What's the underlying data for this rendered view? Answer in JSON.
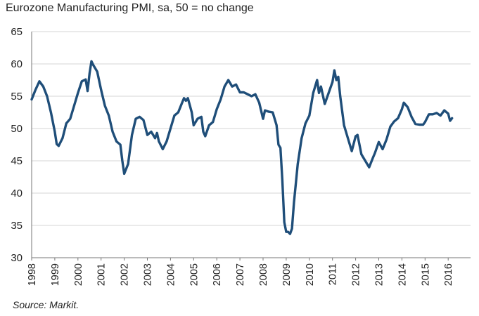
{
  "chart_data": {
    "type": "line",
    "title": "Eurozone Manufacturing PMI, sa, 50 = no change",
    "source": "Source: Markit.",
    "xlabel": "",
    "ylabel": "",
    "ylim": [
      30,
      65
    ],
    "yticks": [
      "30",
      "35",
      "40",
      "45",
      "50",
      "55",
      "60",
      "65"
    ],
    "xlim": [
      "1998-01",
      "2016-12"
    ],
    "xticks": [
      "1998",
      "1999",
      "2000",
      "2001",
      "2002",
      "2003",
      "2004",
      "2005",
      "2006",
      "2007",
      "2008",
      "2009",
      "2010",
      "2011",
      "2012",
      "2013",
      "2014",
      "2015",
      "2016"
    ],
    "grid": true,
    "legend": "none",
    "series": [
      {
        "color": "#1f4e79",
        "points": [
          [
            "1998-01",
            54.5
          ],
          [
            "1998-03",
            56.0
          ],
          [
            "1998-05",
            57.3
          ],
          [
            "1998-07",
            56.5
          ],
          [
            "1998-09",
            55.0
          ],
          [
            "1998-11",
            52.5
          ],
          [
            "1999-01",
            49.5
          ],
          [
            "1999-02",
            47.6
          ],
          [
            "1999-03",
            47.3
          ],
          [
            "1999-05",
            48.5
          ],
          [
            "1999-07",
            50.8
          ],
          [
            "1999-09",
            51.5
          ],
          [
            "1999-11",
            53.5
          ],
          [
            "2000-01",
            55.5
          ],
          [
            "2000-03",
            57.3
          ],
          [
            "2000-05",
            57.6
          ],
          [
            "2000-06",
            55.8
          ],
          [
            "2000-07",
            58.5
          ],
          [
            "2000-08",
            60.4
          ],
          [
            "2000-09",
            59.8
          ],
          [
            "2000-11",
            58.8
          ],
          [
            "2001-01",
            56.0
          ],
          [
            "2001-03",
            53.5
          ],
          [
            "2001-05",
            52.0
          ],
          [
            "2001-07",
            49.5
          ],
          [
            "2001-09",
            48.0
          ],
          [
            "2001-11",
            47.5
          ],
          [
            "2001-12",
            45.0
          ],
          [
            "2002-01",
            43.0
          ],
          [
            "2002-03",
            44.5
          ],
          [
            "2002-05",
            49.0
          ],
          [
            "2002-07",
            51.5
          ],
          [
            "2002-09",
            51.8
          ],
          [
            "2002-11",
            51.3
          ],
          [
            "2003-01",
            49.0
          ],
          [
            "2003-03",
            49.5
          ],
          [
            "2003-05",
            48.5
          ],
          [
            "2003-06",
            49.3
          ],
          [
            "2003-07",
            48.0
          ],
          [
            "2003-09",
            46.8
          ],
          [
            "2003-11",
            48.0
          ],
          [
            "2004-01",
            50.0
          ],
          [
            "2004-03",
            52.0
          ],
          [
            "2004-05",
            52.5
          ],
          [
            "2004-07",
            54.0
          ],
          [
            "2004-08",
            54.7
          ],
          [
            "2004-09",
            54.3
          ],
          [
            "2004-10",
            54.7
          ],
          [
            "2004-12",
            52.5
          ],
          [
            "2005-01",
            50.5
          ],
          [
            "2005-03",
            51.5
          ],
          [
            "2005-05",
            51.8
          ],
          [
            "2005-06",
            49.5
          ],
          [
            "2005-07",
            48.8
          ],
          [
            "2005-09",
            50.5
          ],
          [
            "2005-11",
            51.0
          ],
          [
            "2006-01",
            53.0
          ],
          [
            "2006-03",
            54.5
          ],
          [
            "2006-05",
            56.5
          ],
          [
            "2006-07",
            57.5
          ],
          [
            "2006-09",
            56.5
          ],
          [
            "2006-11",
            56.8
          ],
          [
            "2007-01",
            55.6
          ],
          [
            "2007-03",
            55.6
          ],
          [
            "2007-05",
            55.3
          ],
          [
            "2007-07",
            55.0
          ],
          [
            "2007-09",
            55.3
          ],
          [
            "2007-11",
            54.0
          ],
          [
            "2008-01",
            51.5
          ],
          [
            "2008-02",
            52.8
          ],
          [
            "2008-04",
            52.6
          ],
          [
            "2008-06",
            52.5
          ],
          [
            "2008-08",
            50.5
          ],
          [
            "2008-09",
            47.5
          ],
          [
            "2008-10",
            47.0
          ],
          [
            "2008-11",
            42.0
          ],
          [
            "2008-12",
            35.5
          ],
          [
            "2009-01",
            34.0
          ],
          [
            "2009-02",
            34.0
          ],
          [
            "2009-03",
            33.7
          ],
          [
            "2009-04",
            34.5
          ],
          [
            "2009-05",
            38.5
          ],
          [
            "2009-07",
            44.5
          ],
          [
            "2009-09",
            48.5
          ],
          [
            "2009-11",
            50.8
          ],
          [
            "2010-01",
            52.0
          ],
          [
            "2010-03",
            55.5
          ],
          [
            "2010-05",
            57.5
          ],
          [
            "2010-06",
            55.5
          ],
          [
            "2010-07",
            56.5
          ],
          [
            "2010-09",
            53.8
          ],
          [
            "2010-11",
            55.5
          ],
          [
            "2011-01",
            57.2
          ],
          [
            "2011-02",
            59.0
          ],
          [
            "2011-03",
            57.5
          ],
          [
            "2011-04",
            58.0
          ],
          [
            "2011-05",
            55.0
          ],
          [
            "2011-07",
            50.5
          ],
          [
            "2011-09",
            48.5
          ],
          [
            "2011-11",
            46.5
          ],
          [
            "2012-01",
            48.8
          ],
          [
            "2012-02",
            49.0
          ],
          [
            "2012-04",
            46.0
          ],
          [
            "2012-06",
            45.0
          ],
          [
            "2012-08",
            44.0
          ],
          [
            "2012-10",
            45.5
          ],
          [
            "2012-11",
            46.2
          ],
          [
            "2013-01",
            47.9
          ],
          [
            "2013-03",
            46.8
          ],
          [
            "2013-05",
            48.3
          ],
          [
            "2013-07",
            50.3
          ],
          [
            "2013-09",
            51.1
          ],
          [
            "2013-11",
            51.6
          ],
          [
            "2014-01",
            53.0
          ],
          [
            "2014-02",
            54.0
          ],
          [
            "2014-04",
            53.3
          ],
          [
            "2014-06",
            51.8
          ],
          [
            "2014-08",
            50.7
          ],
          [
            "2014-10",
            50.6
          ],
          [
            "2014-12",
            50.6
          ],
          [
            "2015-01",
            51.0
          ],
          [
            "2015-03",
            52.2
          ],
          [
            "2015-05",
            52.2
          ],
          [
            "2015-07",
            52.4
          ],
          [
            "2015-09",
            52.0
          ],
          [
            "2015-11",
            52.8
          ],
          [
            "2016-01",
            52.3
          ],
          [
            "2016-02",
            51.2
          ],
          [
            "2016-03",
            51.6
          ]
        ]
      }
    ]
  }
}
